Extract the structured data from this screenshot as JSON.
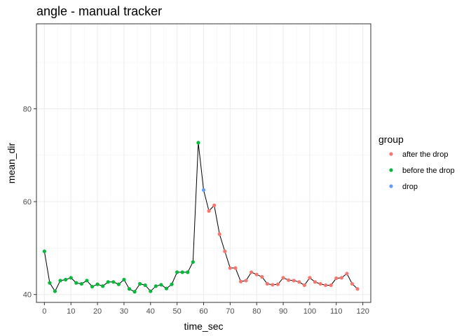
{
  "chart_data": {
    "type": "scatter",
    "title": "angle - manual tracker",
    "xlabel": "time_sec",
    "ylabel": "mean_dir",
    "xlim": [
      -3,
      123
    ],
    "ylim": [
      38.3,
      98.3
    ],
    "x_ticks": [
      0,
      10,
      20,
      30,
      40,
      50,
      60,
      70,
      80,
      90,
      100,
      110,
      120
    ],
    "y_ticks": [
      40,
      60,
      80
    ],
    "grid": true,
    "line_color": "#000000",
    "legend": {
      "title": "group",
      "placement": "right",
      "entries": [
        {
          "label": "after the drop",
          "color": "#F8766D"
        },
        {
          "label": "before the drop",
          "color": "#00BA38"
        },
        {
          "label": "drop",
          "color": "#619CFF"
        }
      ]
    },
    "series": [
      {
        "name": "before the drop",
        "color": "#00BA38",
        "points": [
          [
            0,
            49.3
          ],
          [
            2,
            42.5
          ],
          [
            4,
            40.7
          ],
          [
            6,
            43.0
          ],
          [
            8,
            43.2
          ],
          [
            10,
            43.6
          ],
          [
            12,
            42.5
          ],
          [
            14,
            42.3
          ],
          [
            16,
            43.0
          ],
          [
            18,
            41.7
          ],
          [
            20,
            42.2
          ],
          [
            22,
            41.8
          ],
          [
            24,
            42.7
          ],
          [
            26,
            42.7
          ],
          [
            28,
            42.2
          ],
          [
            30,
            43.2
          ],
          [
            32,
            41.2
          ],
          [
            34,
            40.6
          ],
          [
            36,
            42.3
          ],
          [
            38,
            42.0
          ],
          [
            40,
            40.7
          ],
          [
            42,
            41.8
          ],
          [
            44,
            42.1
          ],
          [
            46,
            41.3
          ],
          [
            48,
            42.2
          ],
          [
            50,
            44.8
          ],
          [
            52,
            44.8
          ],
          [
            54,
            44.8
          ],
          [
            56,
            47.0
          ],
          [
            58,
            72.7
          ]
        ]
      },
      {
        "name": "drop",
        "color": "#619CFF",
        "points": [
          [
            60,
            62.5
          ]
        ]
      },
      {
        "name": "after the drop",
        "color": "#F8766D",
        "points": [
          [
            62,
            58.0
          ],
          [
            64,
            59.2
          ],
          [
            66,
            53.0
          ],
          [
            68,
            49.3
          ],
          [
            70,
            45.7
          ],
          [
            72,
            45.7
          ],
          [
            74,
            42.8
          ],
          [
            76,
            43.0
          ],
          [
            78,
            44.8
          ],
          [
            80,
            44.3
          ],
          [
            82,
            43.8
          ],
          [
            84,
            42.3
          ],
          [
            86,
            42.1
          ],
          [
            88,
            42.2
          ],
          [
            90,
            43.6
          ],
          [
            92,
            43.1
          ],
          [
            94,
            43.0
          ],
          [
            96,
            42.7
          ],
          [
            98,
            42.0
          ],
          [
            100,
            43.6
          ],
          [
            102,
            42.7
          ],
          [
            104,
            42.3
          ],
          [
            106,
            42.0
          ],
          [
            108,
            42.0
          ],
          [
            110,
            43.5
          ],
          [
            112,
            43.6
          ],
          [
            114,
            44.5
          ],
          [
            116,
            42.3
          ],
          [
            118,
            41.2
          ]
        ]
      }
    ]
  }
}
